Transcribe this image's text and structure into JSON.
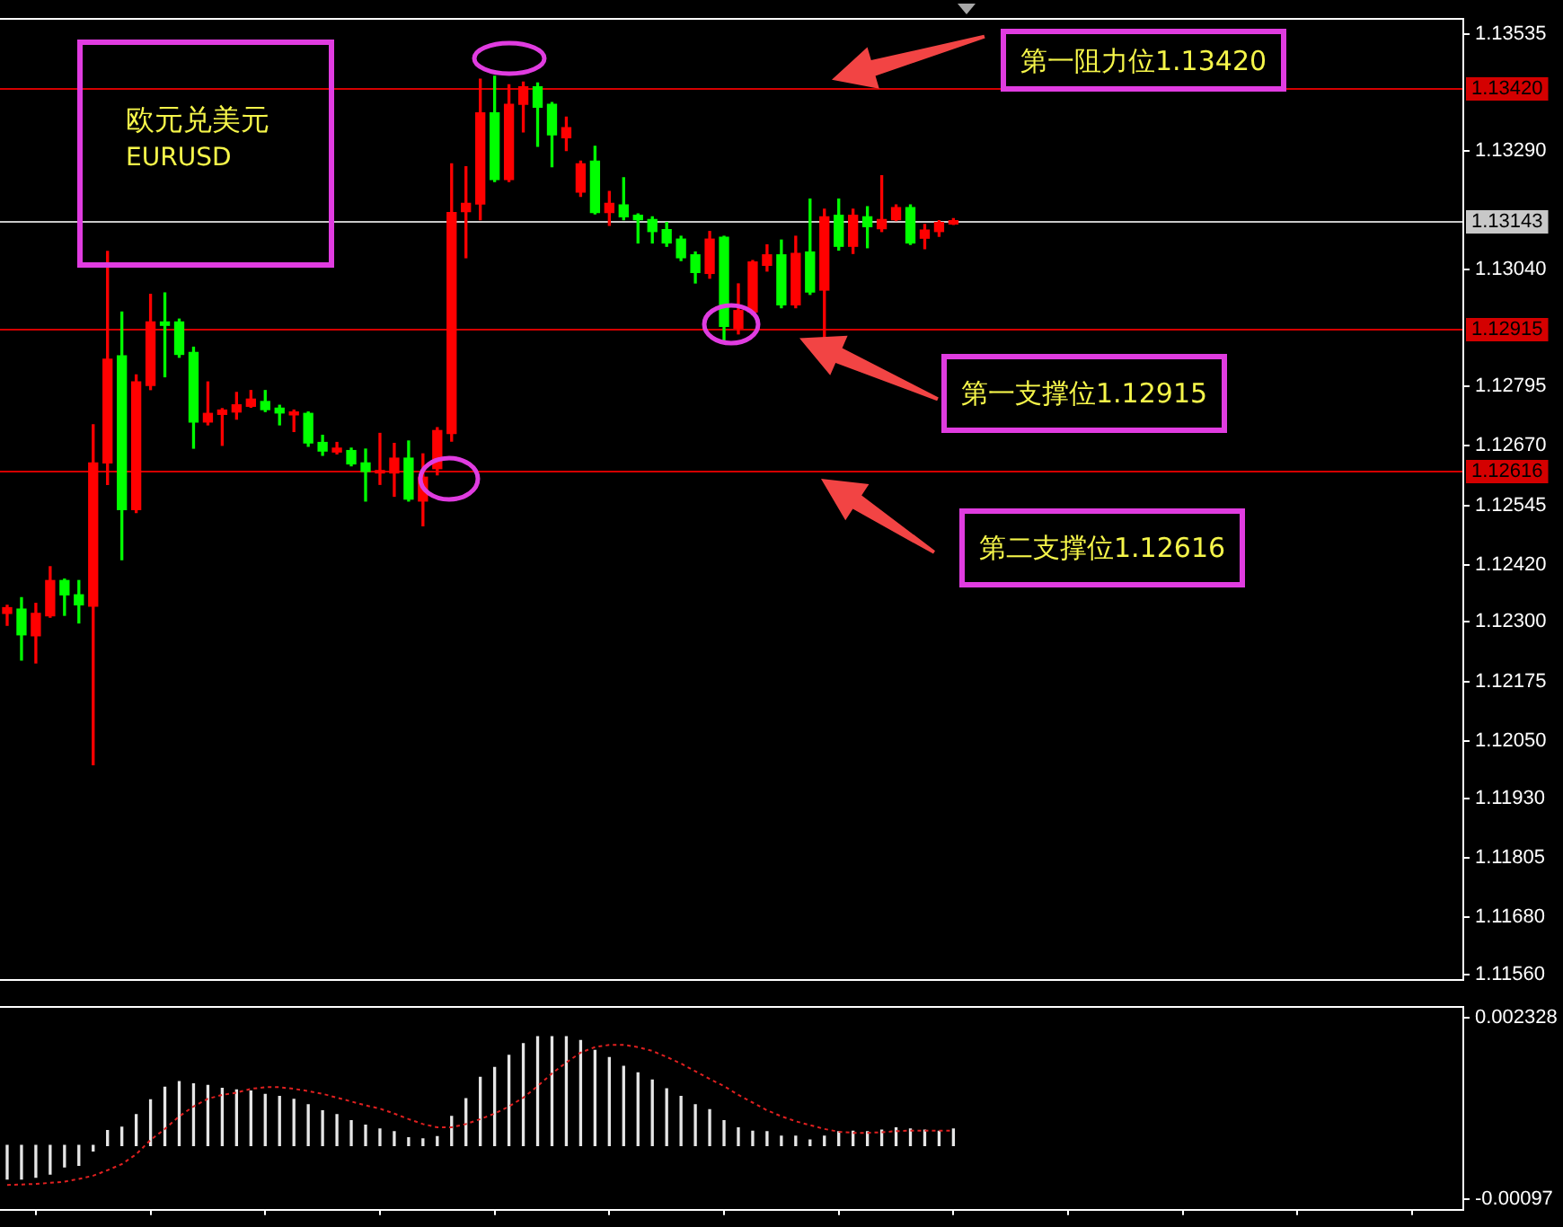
{
  "chart_data": [
    {
      "type": "candlestick",
      "title": "欧元兑美元",
      "subtitle": "EURUSD",
      "annotations": [
        {
          "text": "第一阻力位1.13420",
          "y": 1.1342
        },
        {
          "text": "第一支撑位1.12915",
          "y": 1.12915
        },
        {
          "text": "第二支撑位1.12616",
          "y": 1.12616
        }
      ],
      "categories": [
        null,
        null,
        null,
        null,
        null,
        null,
        null,
        null,
        null,
        null,
        null,
        null,
        null,
        null,
        null,
        null,
        null,
        null,
        null,
        null,
        null,
        null,
        null,
        null,
        null,
        null,
        null,
        null,
        null,
        null,
        null,
        null,
        null,
        null,
        null,
        null,
        null,
        null,
        null,
        null,
        null,
        null,
        null,
        null,
        null,
        null,
        null,
        null,
        null,
        null,
        null,
        null,
        null,
        null,
        null,
        null,
        null,
        null,
        null,
        null,
        null,
        null,
        null,
        null,
        null,
        null,
        null,
        null,
        null,
        null,
        null,
        null,
        null,
        null,
        null,
        null,
        null,
        null,
        null,
        null,
        null,
        null,
        null,
        null,
        null,
        null,
        null,
        null,
        null,
        null,
        null,
        null,
        null,
        null,
        null,
        null,
        null,
        null,
        null,
        null,
        null,
        null
      ],
      "ohlc": [
        [
          1.12318,
          1.12335,
          1.12293,
          1.1233
        ],
        [
          1.12327,
          1.12351,
          1.1222,
          1.12273
        ],
        [
          1.12271,
          1.12339,
          1.12214,
          1.12318
        ],
        [
          1.12313,
          1.12416,
          1.1231,
          1.12387
        ],
        [
          1.12387,
          1.1239,
          1.12314,
          1.12357
        ],
        [
          1.12357,
          1.12387,
          1.12298,
          1.12336
        ],
        [
          1.12333,
          1.12714,
          1.12,
          1.12634
        ],
        [
          1.12634,
          1.13078,
          1.12589,
          1.12852
        ],
        [
          1.12859,
          1.12951,
          1.12431,
          1.12536
        ],
        [
          1.12536,
          1.12819,
          1.1253,
          1.12804
        ],
        [
          1.12797,
          1.12988,
          1.12788,
          1.1293
        ],
        [
          1.1293,
          1.12991,
          1.12815,
          1.12923
        ],
        [
          1.1293,
          1.12936,
          1.12856,
          1.12862
        ],
        [
          1.12866,
          1.12877,
          1.12665,
          1.1272
        ],
        [
          1.1272,
          1.12804,
          1.12714,
          1.12738
        ],
        [
          1.12736,
          1.12748,
          1.12671,
          1.12745
        ],
        [
          1.12741,
          1.12782,
          1.12726,
          1.12756
        ],
        [
          1.12753,
          1.12786,
          1.12751,
          1.12768
        ],
        [
          1.12763,
          1.12786,
          1.12742,
          1.12746
        ],
        [
          1.12749,
          1.12755,
          1.12714,
          1.12739
        ],
        [
          1.12735,
          1.12745,
          1.127,
          1.12741
        ],
        [
          1.12738,
          1.12741,
          1.12669,
          1.12676
        ],
        [
          1.12677,
          1.12692,
          1.1265,
          1.12659
        ],
        [
          1.12657,
          1.12677,
          1.12653,
          1.12665
        ],
        [
          1.1266,
          1.12665,
          1.12628,
          1.12632
        ],
        [
          1.12634,
          1.12663,
          1.12554,
          1.12616
        ],
        [
          1.12613,
          1.12696,
          1.12589,
          1.12618
        ],
        [
          1.12613,
          1.12675,
          1.12564,
          1.12644
        ],
        [
          1.12644,
          1.1268,
          1.12554,
          1.12558
        ],
        [
          1.12554,
          1.12653,
          1.12502,
          1.12604
        ],
        [
          1.12622,
          1.12708,
          1.12609,
          1.12702
        ],
        [
          1.12696,
          1.13262,
          1.1268,
          1.1316
        ],
        [
          1.13162,
          1.13256,
          1.13065,
          1.13179
        ],
        [
          1.13178,
          1.1344,
          1.13145,
          1.13369
        ],
        [
          1.13369,
          1.13446,
          1.13225,
          1.13229
        ],
        [
          1.13229,
          1.13428,
          1.13225,
          1.13387
        ],
        [
          1.13387,
          1.13434,
          1.13329,
          1.13424
        ],
        [
          1.13424,
          1.13432,
          1.13299,
          1.13381
        ],
        [
          1.13387,
          1.13391,
          1.13256,
          1.13323
        ],
        [
          1.13317,
          1.1336,
          1.1329,
          1.13338
        ],
        [
          1.13203,
          1.13268,
          1.13194,
          1.13262
        ],
        [
          1.13268,
          1.13299,
          1.13157,
          1.1316
        ],
        [
          1.1316,
          1.13204,
          1.13133,
          1.13179
        ],
        [
          1.13176,
          1.13233,
          1.13145,
          1.13151
        ],
        [
          1.13154,
          1.13157,
          1.13096,
          1.13145
        ],
        [
          1.13145,
          1.13151,
          1.13096,
          1.1312
        ],
        [
          1.13124,
          1.13139,
          1.13089,
          1.13096
        ],
        [
          1.13104,
          1.1311,
          1.13059,
          1.13065
        ],
        [
          1.13071,
          1.13077,
          1.13012,
          1.13034
        ],
        [
          1.13032,
          1.1312,
          1.13022,
          1.13104
        ],
        [
          1.13108,
          1.1311,
          1.12889,
          1.12921
        ],
        [
          1.12917,
          1.1301,
          1.12905,
          1.12954
        ],
        [
          1.12951,
          1.13059,
          1.12945,
          1.13056
        ],
        [
          1.13049,
          1.13092,
          1.13037,
          1.13071
        ],
        [
          1.13071,
          1.13102,
          1.1296,
          1.12966
        ],
        [
          1.12966,
          1.1311,
          1.1296,
          1.13074
        ],
        [
          1.13077,
          1.13188,
          1.12988,
          1.12993
        ],
        [
          1.12997,
          1.13167,
          1.12896,
          1.13151
        ],
        [
          1.13154,
          1.13188,
          1.13081,
          1.13089
        ],
        [
          1.13089,
          1.13167,
          1.13074,
          1.13154
        ],
        [
          1.13151,
          1.13172,
          1.13086,
          1.1313
        ],
        [
          1.13126,
          1.13237,
          1.1312,
          1.13145
        ],
        [
          1.13145,
          1.13176,
          1.13143,
          1.1317
        ],
        [
          1.1317,
          1.13176,
          1.13093,
          1.13096
        ],
        [
          1.13106,
          1.13135,
          1.13084,
          1.13123
        ],
        [
          1.1312,
          1.13143,
          1.1311,
          1.13139
        ],
        [
          1.13136,
          1.13147,
          1.13135,
          1.13143
        ],
        null,
        null,
        null,
        null,
        null,
        null,
        null,
        null,
        null,
        null,
        null,
        null,
        null,
        null,
        null,
        null,
        null,
        null,
        null,
        null,
        null,
        null,
        null,
        null,
        null,
        null,
        null,
        null,
        null,
        null,
        null,
        null,
        null,
        null,
        null
      ],
      "colors": [
        "#ff0000",
        "#00ff00",
        "#ff0000",
        "#ff0000",
        "#00ff00",
        "#00ff00",
        "#ff0000",
        "#ff0000",
        "#00ff00",
        "#ff0000",
        "#ff0000",
        "#00ff00",
        "#00ff00",
        "#00ff00",
        "#ff0000",
        "#ff0000",
        "#ff0000",
        "#ff0000",
        "#00ff00",
        "#00ff00",
        "#ff0000",
        "#00ff00",
        "#00ff00",
        "#ff0000",
        "#00ff00",
        "#00ff00",
        "#ff0000",
        "#ff0000",
        "#00ff00",
        "#ff0000",
        "#ff0000",
        "#ff0000",
        "#ff0000",
        "#ff0000",
        "#00ff00",
        "#ff0000",
        "#ff0000",
        "#00ff00",
        "#00ff00",
        "#ff0000",
        "#ff0000",
        "#00ff00",
        "#ff0000",
        "#00ff00",
        "#00ff00",
        "#00ff00",
        "#00ff00",
        "#00ff00",
        "#00ff00",
        "#ff0000",
        "#00ff00",
        "#ff0000",
        "#ff0000",
        "#ff0000",
        "#00ff00",
        "#ff0000",
        "#00ff00",
        "#ff0000",
        "#00ff00",
        "#ff0000",
        "#00ff00",
        "#ff0000",
        "#ff0000",
        "#00ff00",
        "#ff0000",
        "#ff0000",
        "#ff0000",
        null,
        null,
        null,
        null,
        null,
        null,
        null,
        null,
        null,
        null,
        null,
        null,
        null,
        null,
        null,
        null,
        null,
        null,
        null,
        null,
        null,
        null,
        null,
        null,
        null,
        null,
        null,
        null,
        null,
        null,
        null,
        null,
        null,
        null,
        null
      ],
      "ylim": [
        1.1155,
        1.1357
      ],
      "yticks": [
        1.13535,
        {
          "value": 1.1329,
          "label": "1.13290"
        },
        {
          "value": 1.1304,
          "label": "1.13040"
        },
        1.12795,
        {
          "value": 1.1267,
          "label": "1.12670"
        },
        1.12545,
        {
          "value": 1.1242,
          "label": "1.12420"
        },
        {
          "value": 1.123,
          "label": "1.12300"
        },
        1.12175,
        {
          "value": 1.1205,
          "label": "1.12050"
        },
        {
          "value": 1.1193,
          "label": "1.11930"
        },
        1.11805,
        {
          "value": 1.1168,
          "label": "1.11680"
        },
        {
          "value": 1.1156,
          "label": "1.11560"
        }
      ],
      "ref_lines": [
        {
          "axis": "y",
          "value": 1.1342,
          "label": "1.13420",
          "color": "#d40000"
        },
        {
          "axis": "y",
          "value": 1.13143,
          "label": "1.13143",
          "color": "#c8c8c8"
        },
        {
          "axis": "y",
          "value": 1.12915,
          "label": "1.12915",
          "color": "#d40000"
        },
        {
          "axis": "y",
          "value": 1.12616,
          "label": "1.12616",
          "color": "#d40000"
        }
      ],
      "tick_labels": "y"
    },
    {
      "type": "bar",
      "categories": [
        null,
        null,
        null,
        null,
        null,
        null,
        null,
        null,
        null,
        null,
        null,
        null,
        null,
        null,
        null,
        null,
        null,
        null,
        null,
        null,
        null,
        null,
        null,
        null,
        null,
        null,
        null,
        null,
        null,
        null,
        null,
        null,
        null,
        null,
        null,
        null,
        null,
        null,
        null,
        null,
        null,
        null,
        null,
        null,
        null,
        null,
        null,
        null,
        null,
        null,
        null,
        null,
        null,
        null,
        null,
        null,
        null,
        null,
        null,
        null,
        null,
        null,
        null,
        null,
        null,
        null,
        null,
        null,
        null,
        null,
        null,
        null,
        null,
        null,
        null,
        null,
        null,
        null,
        null,
        null,
        null,
        null,
        null,
        null,
        null,
        null,
        null,
        null,
        null,
        null,
        null,
        null,
        null,
        null,
        null,
        null,
        null,
        null,
        null,
        null,
        null,
        null
      ],
      "series": [
        {
          "color": "#e6e6e6",
          "values": [
            -0.00061,
            -0.00061,
            -0.00058,
            -0.00052,
            -0.00039,
            -0.00036,
            -0.0001,
            0.00027,
            0.00033,
            0.00056,
            0.00083,
            0.00106,
            0.00116,
            0.00112,
            0.00109,
            0.00104,
            0.00101,
            0.00099,
            0.00093,
            0.00089,
            0.00084,
            0.00074,
            0.00063,
            0.00056,
            0.00045,
            0.00037,
            0.0003,
            0.00025,
            0.00014,
            0.00012,
            0.00016,
            0.00053,
            0.00085,
            0.00124,
            0.00142,
            0.00164,
            0.00185,
            0.00198,
            0.00198,
            0.00198,
            0.00191,
            0.00173,
            0.0016,
            0.00144,
            0.00132,
            0.00119,
            0.00103,
            0.00089,
            0.00074,
            0.00065,
            0.00045,
            0.00032,
            0.00026,
            0.00025,
            0.00017,
            0.00017,
            0.0001,
            0.00017,
            0.00025,
            0.00026,
            0.00025,
            0.00028,
            0.00032,
            0.0003,
            0.00028,
            0.00026,
            0.0003,
            null,
            null,
            null,
            null,
            null,
            null,
            null,
            null,
            null,
            null,
            null,
            null,
            null,
            null,
            null,
            null,
            null,
            null,
            null,
            null,
            null,
            null,
            null,
            null,
            null,
            null,
            null,
            null,
            null,
            null,
            null,
            null,
            null,
            null,
            null
          ]
        },
        {
          "type": "line",
          "color": "#e02020",
          "values": [
            -0.00072,
            -0.00071,
            -0.0007,
            -0.00068,
            -0.00066,
            -0.00061,
            -0.00055,
            -0.00045,
            -0.00034,
            -0.00016,
            0.0001,
            0.0003,
            0.00053,
            0.00071,
            0.00085,
            0.00092,
            0.00096,
            0.00103,
            0.00106,
            0.00106,
            0.00103,
            0.00099,
            0.00094,
            0.00087,
            0.0008,
            0.00073,
            0.00067,
            0.00058,
            0.00048,
            0.00039,
            0.00033,
            0.00033,
            0.00039,
            0.00048,
            0.00058,
            0.00071,
            0.00087,
            0.00108,
            0.00131,
            0.00151,
            0.00169,
            0.00179,
            0.00183,
            0.00183,
            0.00179,
            0.00172,
            0.00161,
            0.00149,
            0.00135,
            0.00121,
            0.00108,
            0.00092,
            0.00078,
            0.00064,
            0.00053,
            0.00044,
            0.00037,
            0.0003,
            0.00025,
            0.00023,
            0.00023,
            0.00024,
            0.00026,
            0.00027,
            0.00027,
            0.00027,
            0.00027,
            null,
            null,
            null,
            null,
            null,
            null,
            null,
            null,
            null,
            null,
            null,
            null,
            null,
            null,
            null,
            null,
            null,
            null,
            null,
            null,
            null,
            null,
            null,
            null,
            null,
            null,
            null,
            null,
            null,
            null,
            null,
            null,
            null,
            null,
            null
          ]
        }
      ],
      "ylim": [
        -0.00117,
        0.00255
      ],
      "yticks": [
        -0.00097,
        0.002328
      ],
      "tick_labels": "y",
      "line_style": "dotted",
      "marker": "none"
    }
  ]
}
